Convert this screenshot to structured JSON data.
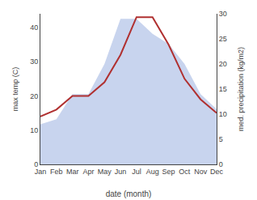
{
  "chart_data": {
    "type": "line",
    "xlabel": "date (month)",
    "ylabel": "max temp (C)",
    "y2label": "med. precipitation (kg/m2)",
    "categories": [
      "Jan",
      "Feb",
      "Mar",
      "Apr",
      "May",
      "Jun",
      "Jul",
      "Aug",
      "Sep",
      "Oct",
      "Nov",
      "Dec"
    ],
    "series": [
      {
        "type": "area",
        "axis": "y2",
        "color": "#c8d4ee",
        "values": [
          8,
          9,
          14,
          14,
          20,
          29,
          29,
          26,
          24,
          20,
          14,
          11
        ]
      },
      {
        "type": "line",
        "color": "#b03030",
        "values": [
          14,
          16,
          20,
          20,
          24,
          32,
          43,
          43,
          35,
          25,
          19,
          15
        ]
      }
    ],
    "ylim": [
      0,
      44
    ],
    "yticks": [
      0,
      10,
      20,
      30,
      40
    ],
    "y2lim": [
      0,
      30
    ],
    "y2ticks": [
      0,
      5,
      10,
      15,
      20,
      25,
      30
    ],
    "grid": false
  }
}
